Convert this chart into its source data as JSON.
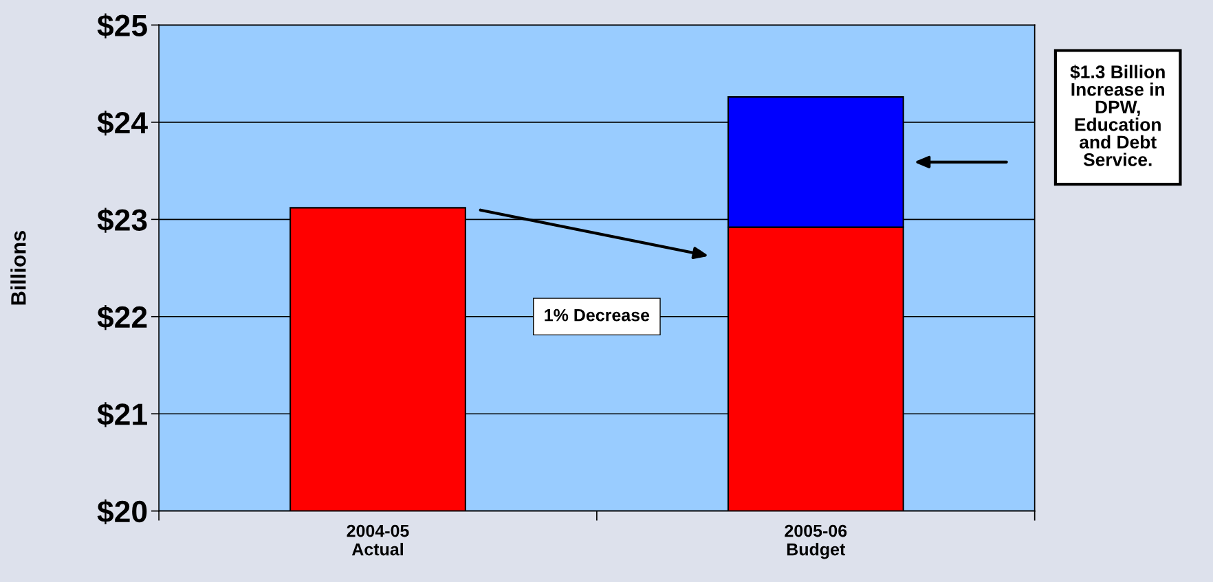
{
  "chart_data": {
    "type": "bar",
    "stacked": true,
    "ylabel": "Billions",
    "categories": [
      "2004-05\nActual",
      "2005-06\nBudget"
    ],
    "series": [
      {
        "color": "#ff0000",
        "values": [
          23.12,
          22.92
        ]
      },
      {
        "color": "#0000ff",
        "values": [
          null,
          1.34
        ],
        "base": [
          null,
          22.92
        ]
      }
    ],
    "ylim": [
      20,
      25
    ],
    "yticks": [
      {
        "value": 20,
        "label": "$20"
      },
      {
        "value": 21,
        "label": "$21"
      },
      {
        "value": 22,
        "label": "$22"
      },
      {
        "value": 23,
        "label": "$23"
      },
      {
        "value": 24,
        "label": "$24"
      },
      {
        "value": 25,
        "label": "$25"
      }
    ],
    "grid": "y",
    "legend": false,
    "annotations": [
      "1% Decrease",
      "$1.3 Billion\nIncrease in\nDPW,\nEducation\nand Debt\nService."
    ]
  }
}
